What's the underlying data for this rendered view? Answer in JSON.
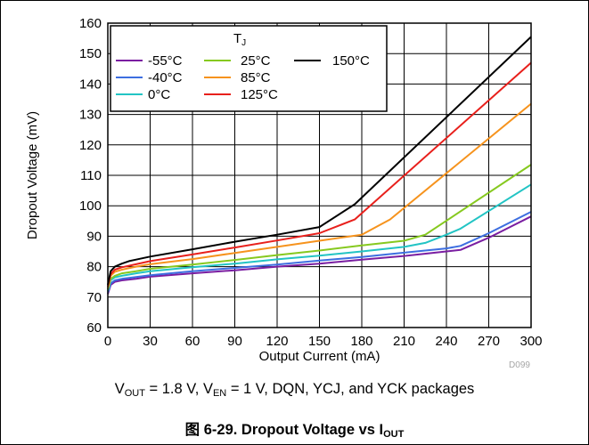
{
  "chart_data": {
    "type": "line",
    "title": "",
    "xlabel": "Output Current (mA)",
    "ylabel": "Dropout Voltage (mV)",
    "xlim": [
      0,
      300
    ],
    "ylim": [
      60,
      160
    ],
    "xticks": [
      0,
      30,
      60,
      90,
      120,
      150,
      180,
      210,
      240,
      270,
      300
    ],
    "yticks": [
      60,
      70,
      80,
      90,
      100,
      110,
      120,
      130,
      140,
      150,
      160
    ],
    "grid": true,
    "legend": {
      "title": "T",
      "title_sub": "J",
      "placement": "top-left"
    },
    "code": "D099",
    "series": [
      {
        "name": "-55°C",
        "color": "#7a1ea1",
        "x": [
          0,
          2,
          5,
          10,
          20,
          30,
          60,
          90,
          120,
          150,
          180,
          210,
          240,
          250,
          270,
          300
        ],
        "y": [
          71,
          74,
          75,
          75.5,
          76,
          76.7,
          77.8,
          78.8,
          80,
          81,
          82.3,
          83.5,
          85,
          85.5,
          89.5,
          96.5
        ]
      },
      {
        "name": "-40°C",
        "color": "#3d6ee0",
        "x": [
          0,
          2,
          5,
          10,
          20,
          30,
          60,
          90,
          120,
          150,
          180,
          210,
          240,
          250,
          270,
          300
        ],
        "y": [
          71.5,
          74.5,
          75.5,
          76,
          76.6,
          77.2,
          78.5,
          79.6,
          80.7,
          82,
          83.2,
          84.6,
          86,
          86.8,
          91,
          98
        ]
      },
      {
        "name": "0°C",
        "color": "#22c4c4",
        "x": [
          0,
          2,
          5,
          10,
          20,
          30,
          60,
          90,
          120,
          150,
          180,
          210,
          225,
          240,
          250,
          300
        ],
        "y": [
          72,
          75.5,
          76.5,
          77,
          77.8,
          78.5,
          79.8,
          81,
          82.4,
          83.6,
          85,
          86.5,
          87.8,
          90.5,
          92.5,
          107
        ]
      },
      {
        "name": "25°C",
        "color": "#86c91f",
        "x": [
          0,
          2,
          5,
          10,
          20,
          30,
          60,
          90,
          120,
          150,
          180,
          210,
          225,
          300
        ],
        "y": [
          72.5,
          76,
          77,
          77.8,
          78.5,
          79.3,
          80.7,
          82.2,
          83.8,
          85.3,
          87,
          88.5,
          90.5,
          113.5
        ]
      },
      {
        "name": "85°C",
        "color": "#f6931d",
        "x": [
          0,
          2,
          5,
          10,
          20,
          30,
          60,
          90,
          120,
          150,
          180,
          200,
          300
        ],
        "y": [
          73,
          77,
          78.3,
          79,
          80,
          80.8,
          82.5,
          84.5,
          86.5,
          88.5,
          90.5,
          95.5,
          133.5
        ]
      },
      {
        "name": "125°C",
        "color": "#e8201c",
        "x": [
          0,
          2,
          5,
          10,
          20,
          30,
          60,
          90,
          120,
          150,
          175,
          300
        ],
        "y": [
          73.5,
          77.5,
          79,
          79.8,
          80.8,
          81.8,
          84,
          86.3,
          88.6,
          91,
          95.5,
          147
        ]
      },
      {
        "name": "150°C",
        "color": "#000000",
        "x": [
          0,
          2,
          5,
          10,
          15,
          20,
          30,
          60,
          90,
          120,
          150,
          175,
          300
        ],
        "y": [
          74,
          78.5,
          80,
          81,
          81.8,
          82.3,
          83.3,
          85.7,
          88.2,
          90.5,
          93,
          100.5,
          155.5
        ]
      }
    ]
  },
  "condition": {
    "v1": "V",
    "v1_sub": "OUT",
    "t1": " = 1.8 V, V",
    "v2_sub": "EN",
    "t2": " = 1 V, DQN, YCJ, and YCK packages"
  },
  "caption": {
    "text": "图 6-29. Dropout Voltage vs I",
    "sub": "OUT"
  }
}
